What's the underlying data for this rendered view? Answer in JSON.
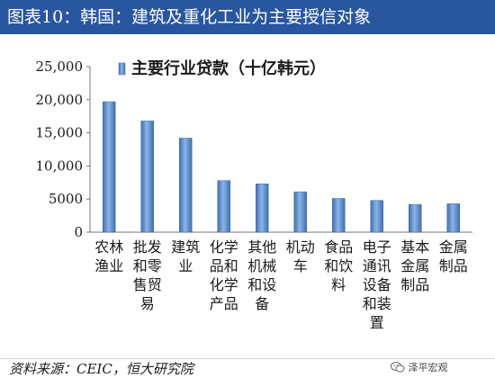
{
  "header": {
    "title": "图表10：韩国：建筑及重化工业为主要授信对象"
  },
  "footer": {
    "source": "资料来源：CEIC，恒大研究院",
    "watermark": "泽平宏观",
    "watermark_icon": "wechat-icon"
  },
  "chart_data": {
    "type": "bar",
    "categories": [
      "农林渔业",
      "批发和零售贸易",
      "建筑业",
      "化学品和化学产品",
      "其他机械和设备",
      "机动车",
      "食品和饮料",
      "电子通讯设备和装置",
      "基本金属制品",
      "金属制品"
    ],
    "category_lines": [
      [
        "农林",
        "渔业"
      ],
      [
        "批发",
        "和零",
        "售贸",
        "易"
      ],
      [
        "建筑",
        "业"
      ],
      [
        "化学",
        "品和",
        "化学",
        "产品"
      ],
      [
        "其他",
        "机械",
        "和设",
        "备"
      ],
      [
        "机动",
        "车"
      ],
      [
        "食品",
        "和饮",
        "料"
      ],
      [
        "电子",
        "通讯",
        "设备",
        "和装",
        "置"
      ],
      [
        "基本",
        "金属",
        "制品"
      ],
      [
        "金属",
        "制品"
      ]
    ],
    "series": [
      {
        "name": "主要行业贷款（十亿韩元）",
        "values": [
          19700,
          16800,
          14200,
          7800,
          7300,
          6100,
          5100,
          4800,
          4200,
          4300
        ]
      }
    ],
    "yticks": [
      "0",
      "5000",
      "10,000",
      "15,000",
      "20,000",
      "25,000"
    ],
    "ylim": [
      0,
      25000
    ],
    "legend_position": "top-left",
    "grid": false,
    "bar_color": "#5b8fd0"
  }
}
